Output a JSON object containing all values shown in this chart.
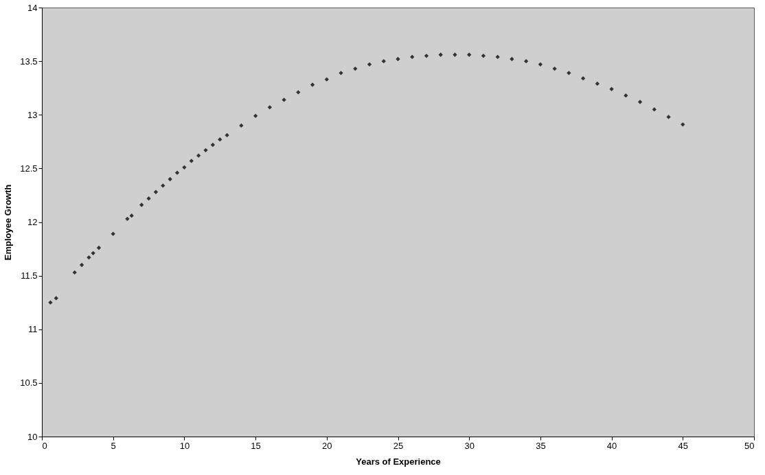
{
  "chart_data": {
    "type": "scatter",
    "xlabel": "Years of Experience",
    "ylabel": "Employee Growth",
    "x": [
      0.6,
      1.0,
      2.3,
      2.8,
      3.3,
      3.6,
      4.0,
      5.0,
      6.0,
      6.3,
      7.0,
      7.5,
      8.0,
      8.5,
      9.0,
      9.5,
      10.0,
      10.5,
      11.0,
      11.5,
      12.0,
      12.5,
      13.0,
      14.0,
      15.0,
      16.0,
      17.0,
      18.0,
      19.0,
      20.0,
      21.0,
      22.0,
      23.0,
      24.0,
      25.0,
      26.0,
      27.0,
      28.0,
      29.0,
      30.0,
      31.0,
      32.0,
      33.0,
      34.0,
      35.0,
      36.0,
      37.0,
      38.0,
      39.0,
      40.0,
      41.0,
      42.0,
      43.0,
      44.0,
      45.0
    ],
    "series": [
      {
        "color": "#333333",
        "values": [
          11.25,
          11.29,
          11.53,
          11.6,
          11.67,
          11.71,
          11.76,
          11.89,
          12.03,
          12.06,
          12.16,
          12.22,
          12.28,
          12.34,
          12.4,
          12.46,
          12.51,
          12.57,
          12.62,
          12.67,
          12.72,
          12.77,
          12.81,
          12.9,
          12.99,
          13.07,
          13.14,
          13.21,
          13.28,
          13.33,
          13.39,
          13.43,
          13.47,
          13.5,
          13.52,
          13.54,
          13.55,
          13.56,
          13.56,
          13.56,
          13.55,
          13.54,
          13.52,
          13.5,
          13.47,
          13.43,
          13.39,
          13.34,
          13.29,
          13.24,
          13.18,
          13.12,
          13.05,
          12.98,
          12.91
        ]
      }
    ],
    "xlim": [
      0,
      50
    ],
    "xticks": [
      0,
      5,
      10,
      15,
      20,
      25,
      30,
      35,
      40,
      45,
      50
    ],
    "ylim": [
      10,
      14
    ],
    "yticks": [
      10,
      10.5,
      11,
      11.5,
      12,
      12.5,
      13,
      13.5,
      14
    ],
    "marker": "diamond",
    "grid": false
  }
}
